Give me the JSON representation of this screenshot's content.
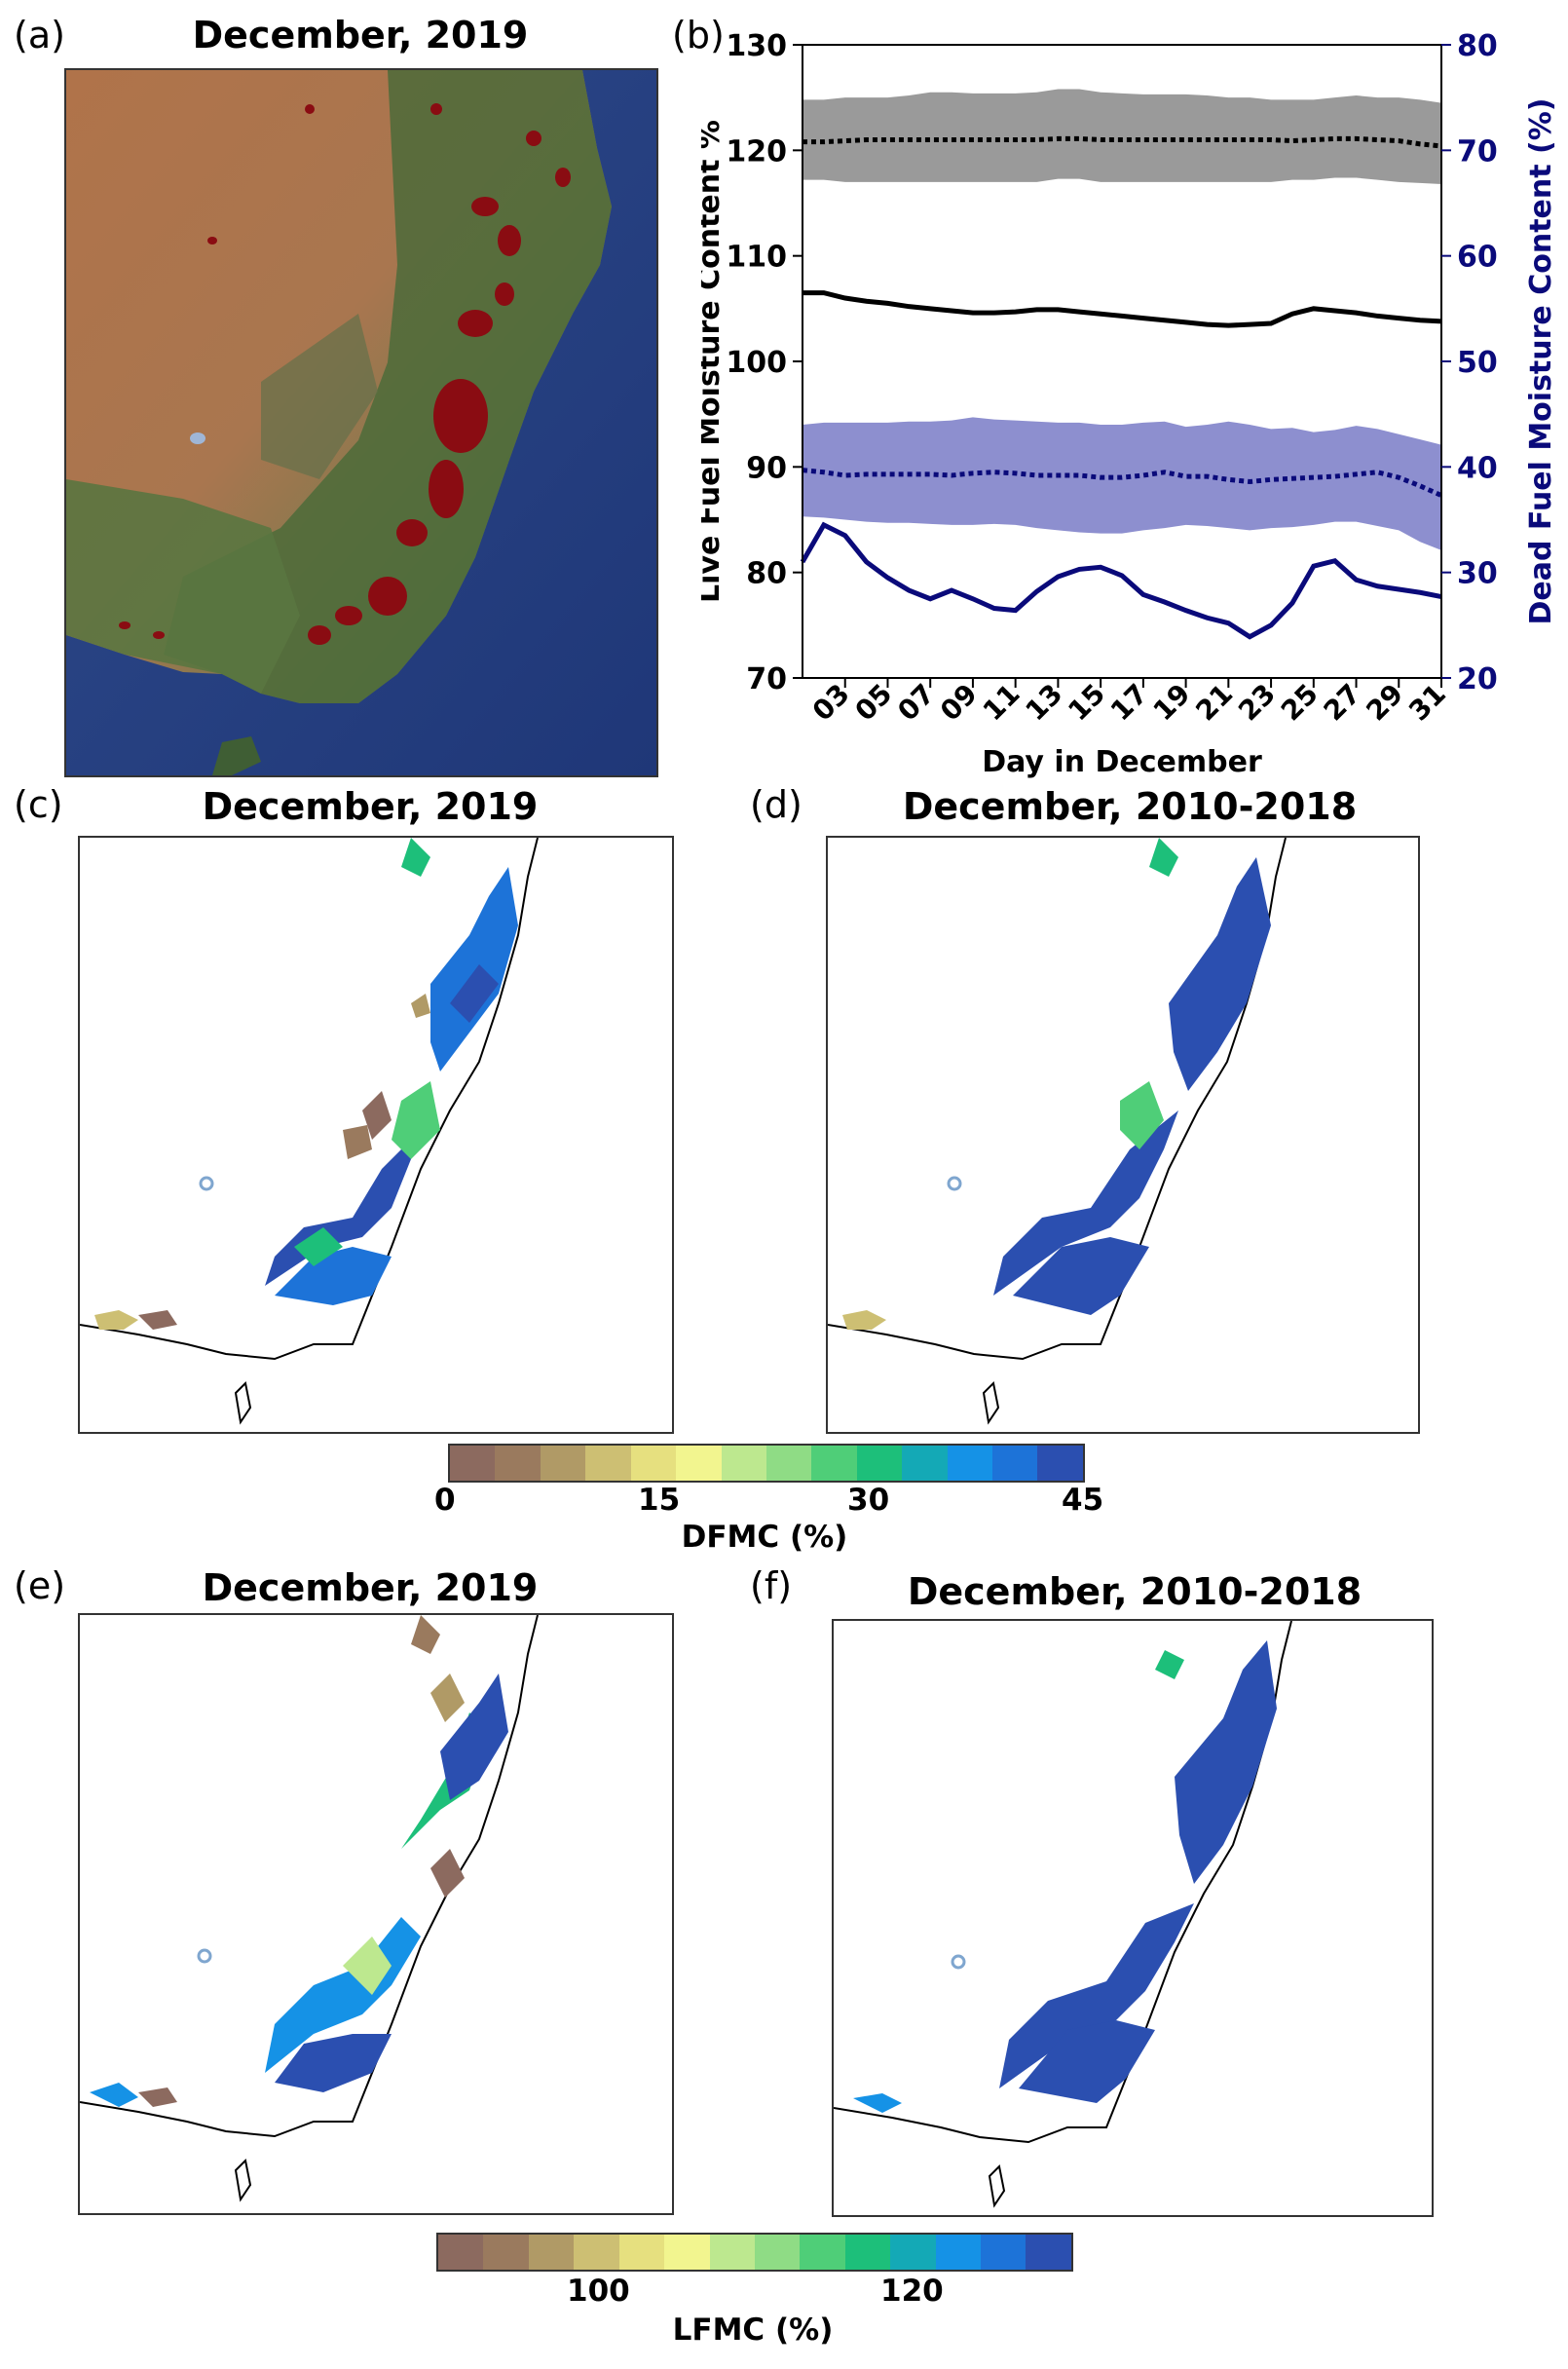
{
  "panels": {
    "a": {
      "letter": "(a)",
      "title": "December, 2019"
    },
    "b": {
      "letter": "(b)"
    },
    "c": {
      "letter": "(c)",
      "title": "December, 2019"
    },
    "d": {
      "letter": "(d)",
      "title": "December, 2010-2018"
    },
    "e": {
      "letter": "(e)",
      "title": "December, 2019"
    },
    "f": {
      "letter": "(f)",
      "title": "December, 2010-2018"
    }
  },
  "dfmc_colorbar": {
    "label": "DFMC (%)",
    "ticks": [
      "0",
      "15",
      "30",
      "45"
    ],
    "colors": [
      "#8c6a5f",
      "#9a7a5e",
      "#b09a66",
      "#cdbf73",
      "#e6e07f",
      "#f2f58f",
      "#bde88f",
      "#8fdc85",
      "#4fce78",
      "#1dbf7a",
      "#14a9b6",
      "#1592e6",
      "#1d73d8",
      "#2b4fb0"
    ]
  },
  "lfmc_colorbar": {
    "label": "LFMC (%)",
    "ticks": [
      "100",
      "120"
    ],
    "colors": [
      "#8c6a5f",
      "#9a7a5e",
      "#b09a66",
      "#cdbf73",
      "#e6e07f",
      "#f2f58f",
      "#bde88f",
      "#8fdc85",
      "#4fce78",
      "#1dbf7a",
      "#14a9b6",
      "#1592e6",
      "#1d73d8",
      "#2b4fb0"
    ]
  },
  "chart_data": {
    "type": "line",
    "xlabel": "Day in December",
    "ylabel_left": "Live Fuel Moisture Content %",
    "ylabel_right": "Dead Fuel Moisture Content (%)",
    "ylim_left": [
      70,
      130
    ],
    "ylim_right": [
      20,
      80
    ],
    "yticks_left": [
      70,
      80,
      90,
      100,
      110,
      120,
      130
    ],
    "yticks_right": [
      20,
      30,
      40,
      50,
      60,
      70,
      80
    ],
    "xticks": [
      "03",
      "05",
      "07",
      "09",
      "11",
      "13",
      "15",
      "17",
      "19",
      "21",
      "23",
      "25",
      "27",
      "29",
      "31"
    ],
    "x": [
      1,
      2,
      3,
      4,
      5,
      6,
      7,
      8,
      9,
      10,
      11,
      12,
      13,
      14,
      15,
      16,
      17,
      18,
      19,
      20,
      21,
      22,
      23,
      24,
      25,
      26,
      27,
      28,
      29,
      30,
      31
    ],
    "colors": {
      "live": "#000000",
      "dead": "#0a0a7a",
      "live_band": "#9a9a9a",
      "dead_band": "#8d8fcf"
    },
    "series": [
      {
        "axis": "left",
        "style": "solid",
        "values": [
          106.5,
          106.5,
          106.0,
          105.7,
          105.5,
          105.2,
          105.0,
          104.8,
          104.6,
          104.6,
          104.7,
          104.9,
          104.9,
          104.7,
          104.5,
          104.3,
          104.1,
          103.9,
          103.7,
          103.5,
          103.4,
          103.5,
          103.6,
          104.5,
          105.0,
          104.8,
          104.6,
          104.3,
          104.1,
          103.9,
          103.8
        ]
      },
      {
        "axis": "left",
        "style": "dotted",
        "values": [
          120.8,
          120.8,
          120.9,
          121.0,
          121.0,
          121.0,
          121.0,
          121.0,
          121.0,
          121.0,
          121.0,
          121.0,
          121.1,
          121.1,
          121.0,
          121.0,
          121.0,
          121.0,
          121.0,
          121.0,
          121.0,
          121.0,
          121.0,
          120.9,
          121.0,
          121.1,
          121.1,
          121.0,
          120.9,
          120.6,
          120.4
        ]
      },
      {
        "axis": "left",
        "style": "band",
        "upper": [
          124.8,
          124.8,
          125.0,
          125.0,
          125.0,
          125.2,
          125.5,
          125.5,
          125.4,
          125.4,
          125.4,
          125.5,
          125.8,
          125.8,
          125.5,
          125.4,
          125.3,
          125.3,
          125.3,
          125.2,
          125.0,
          125.0,
          124.8,
          124.8,
          124.8,
          125.0,
          125.2,
          125.0,
          125.0,
          124.8,
          124.5
        ],
        "lower": [
          117.2,
          117.2,
          117.0,
          117.0,
          117.0,
          117.0,
          117.0,
          117.0,
          117.0,
          117.0,
          117.0,
          117.0,
          117.3,
          117.3,
          117.0,
          117.0,
          117.0,
          117.0,
          117.0,
          117.0,
          117.0,
          117.0,
          117.0,
          117.2,
          117.2,
          117.4,
          117.4,
          117.2,
          117.0,
          116.9,
          116.8
        ]
      },
      {
        "axis": "right",
        "style": "solid",
        "values": [
          31.0,
          34.5,
          33.5,
          31.0,
          29.5,
          28.3,
          27.5,
          28.3,
          27.5,
          26.6,
          26.4,
          28.2,
          29.6,
          30.3,
          30.5,
          29.7,
          27.9,
          27.2,
          26.4,
          25.7,
          25.2,
          23.9,
          25.0,
          27.1,
          30.6,
          31.1,
          29.3,
          28.7,
          28.4,
          28.1,
          27.7
        ]
      },
      {
        "axis": "right",
        "style": "dotted",
        "values": [
          39.7,
          39.5,
          39.2,
          39.3,
          39.3,
          39.3,
          39.3,
          39.2,
          39.4,
          39.5,
          39.4,
          39.2,
          39.2,
          39.2,
          39.0,
          39.0,
          39.2,
          39.5,
          39.1,
          39.1,
          38.8,
          38.6,
          38.8,
          38.9,
          39.0,
          39.1,
          39.3,
          39.5,
          39.0,
          38.2,
          37.3
        ]
      },
      {
        "axis": "right",
        "style": "band",
        "upper": [
          44.0,
          44.2,
          44.2,
          44.2,
          44.2,
          44.3,
          44.3,
          44.4,
          44.7,
          44.5,
          44.4,
          44.3,
          44.2,
          44.2,
          44.0,
          44.0,
          44.2,
          44.3,
          43.8,
          44.0,
          44.3,
          44.0,
          43.6,
          43.7,
          43.3,
          43.5,
          43.9,
          43.6,
          43.1,
          42.6,
          42.1
        ]
      },
      {
        "axis": "right",
        "style": "band_lower",
        "lower": [
          35.3,
          35.2,
          35.0,
          34.8,
          34.7,
          34.7,
          34.6,
          34.5,
          34.5,
          34.6,
          34.5,
          34.2,
          34.0,
          33.8,
          33.7,
          33.7,
          34.0,
          34.2,
          34.5,
          34.4,
          34.2,
          34.0,
          34.2,
          34.3,
          34.5,
          34.8,
          34.8,
          34.4,
          34.0,
          32.9,
          32.1
        ]
      }
    ]
  }
}
